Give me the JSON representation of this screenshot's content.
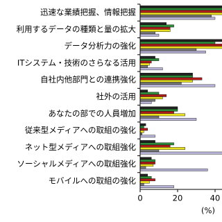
{
  "chart_data": {
    "type": "hbar",
    "categories": [
      "迅速な業績把握、情報把握",
      "利用するデータの種類と量の拡大",
      "データ分析力の強化",
      "ITシステム・技術のさらなる活用",
      "自社内他部門との連携強化",
      "社外の活用",
      "あなたの部での人員増加",
      "従来型メディアへの取組の強化",
      "ネット型メディアへの取組強化",
      "ソーシャルメディアへの取組強化",
      "モバイルへの取組の強化"
    ],
    "series": [
      {
        "color": "#222222",
        "values": [
          45,
          14,
          45,
          8,
          28,
          4,
          20,
          3,
          8,
          6,
          4
        ]
      },
      {
        "color": "#2e8b3a",
        "values": [
          45,
          18,
          40,
          10,
          28,
          10,
          20,
          2,
          18,
          8,
          6
        ]
      },
      {
        "color": "#b01c1c",
        "values": [
          45,
          16,
          48,
          6,
          33,
          14,
          18,
          4,
          16,
          8,
          8
        ]
      },
      {
        "color": "#e8e020",
        "values": [
          45,
          16,
          45,
          5,
          28,
          12,
          24,
          2,
          24,
          7,
          5
        ]
      },
      {
        "color": "#777777",
        "values": [
          38,
          8,
          30,
          4,
          22,
          8,
          10,
          1,
          10,
          3,
          2
        ]
      },
      {
        "color": "#b8b4d8",
        "values": [
          40,
          10,
          35,
          12,
          40,
          6,
          30,
          8,
          45,
          36,
          18
        ]
      }
    ],
    "xlim": [
      0,
      44
    ],
    "xticks": [
      0,
      20,
      40
    ],
    "x_label": "(%)"
  }
}
